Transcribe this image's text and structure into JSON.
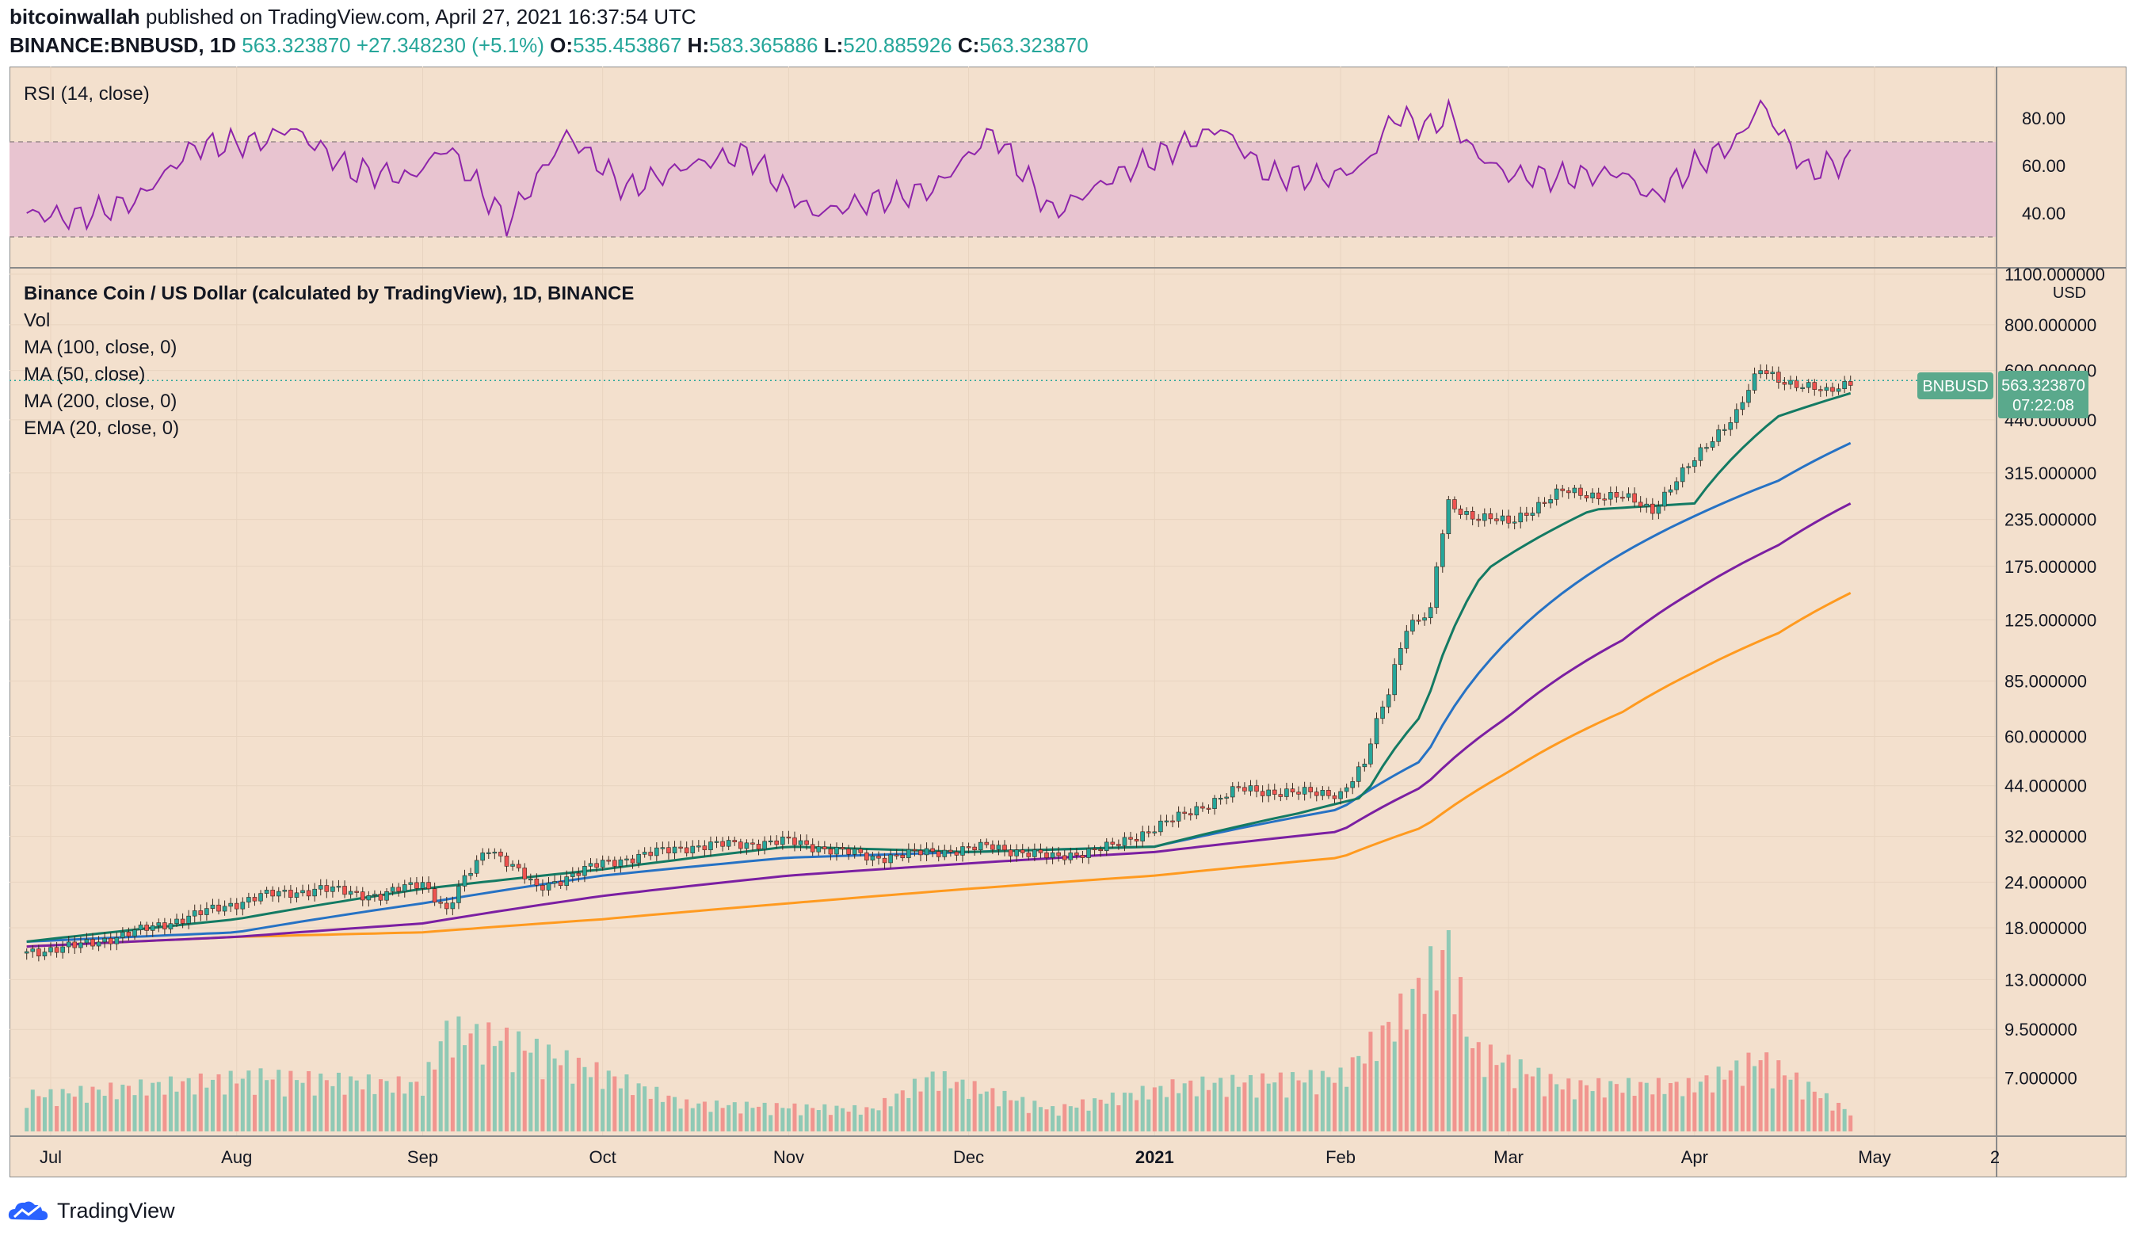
{
  "header": {
    "author": "bitcoinwallah",
    "published_text": "published on TradingView.com, April 27, 2021 16:37:54 UTC",
    "symbol": "BINANCE:BNBUSD, 1D",
    "last": "563.323870",
    "change": "+27.348230 (+5.1%)",
    "open_label": "O:",
    "open": "535.453867",
    "high_label": "H:",
    "high": "583.365886",
    "low_label": "L:",
    "low": "520.885926",
    "close_label": "C:",
    "close": "563.323870"
  },
  "rsi_pane": {
    "title": "RSI (14, close)",
    "ticks": [
      "80.00",
      "60.00",
      "40.00"
    ]
  },
  "price_pane": {
    "legend": [
      "Binance Coin / US Dollar (calculated by TradingView), 1D, BINANCE",
      "Vol",
      "MA (100, close, 0)",
      "MA (50, close)",
      "MA (200, close, 0)",
      "EMA (20, close, 0)"
    ],
    "currency": "USD",
    "ticks": [
      "1100.000000",
      "800.000000",
      "600.000000",
      "440.000000",
      "315.000000",
      "235.000000",
      "175.000000",
      "125.000000",
      "85.000000",
      "60.000000",
      "44.000000",
      "32.000000",
      "24.000000",
      "18.000000",
      "13.000000",
      "9.500000",
      "7.000000"
    ],
    "symbol_tag": "BNBUSD",
    "price_tag": "563.323870",
    "countdown": "07:22:08"
  },
  "x_axis": {
    "labels": [
      "Jul",
      "Aug",
      "Sep",
      "Oct",
      "Nov",
      "Dec",
      "2021",
      "Feb",
      "Mar",
      "Apr",
      "May",
      "2"
    ]
  },
  "footer": {
    "brand": "TradingView"
  },
  "colors": {
    "background": "#f3e0cd",
    "up": "#26a69a",
    "down": "#ef5350",
    "ema20": "#137a63",
    "ma50": "#2672c4",
    "ma100": "#7b1fa2",
    "ma200": "#ff9a1f",
    "rsi_line": "#8e24aa",
    "rsi_band": "#e8c4d0"
  },
  "chart_data": [
    {
      "type": "line",
      "name": "RSI (14, close)",
      "ylim": [
        25,
        95
      ],
      "bands": [
        30,
        70
      ],
      "x": [
        "2020-06-27",
        "2020-07-05",
        "2020-07-15",
        "2020-07-25",
        "2020-08-05",
        "2020-08-10",
        "2020-08-20",
        "2020-08-30",
        "2020-09-05",
        "2020-09-15",
        "2020-09-25",
        "2020-10-05",
        "2020-10-15",
        "2020-10-25",
        "2020-11-05",
        "2020-11-15",
        "2020-11-25",
        "2020-12-05",
        "2020-12-15",
        "2020-12-25",
        "2021-01-05",
        "2021-01-12",
        "2021-01-20",
        "2021-01-30",
        "2021-02-05",
        "2021-02-10",
        "2021-02-16",
        "2021-02-19",
        "2021-02-23",
        "2021-03-01",
        "2021-03-10",
        "2021-03-20",
        "2021-03-25",
        "2021-04-01",
        "2021-04-08",
        "2021-04-12",
        "2021-04-15",
        "2021-04-20",
        "2021-04-23",
        "2021-04-27"
      ],
      "values": [
        40,
        38,
        45,
        68,
        70,
        76,
        58,
        55,
        68,
        36,
        73,
        50,
        60,
        65,
        40,
        45,
        50,
        74,
        40,
        55,
        68,
        76,
        56,
        55,
        60,
        81,
        76,
        82,
        66,
        56,
        55,
        57,
        46,
        60,
        70,
        86,
        75,
        57,
        60,
        62
      ]
    },
    {
      "type": "candlestick",
      "name": "Binance Coin / US Dollar (calculated by TradingView), 1D, BINANCE",
      "yscale": "log",
      "ylim": [
        5,
        1100
      ],
      "x": [
        "2020-06-27",
        "2020-07-05",
        "2020-07-15",
        "2020-07-25",
        "2020-08-05",
        "2020-08-15",
        "2020-08-25",
        "2020-09-01",
        "2020-09-05",
        "2020-09-12",
        "2020-09-20",
        "2020-10-01",
        "2020-10-15",
        "2020-11-01",
        "2020-11-15",
        "2020-11-25",
        "2020-12-05",
        "2020-12-15",
        "2020-12-25",
        "2021-01-05",
        "2021-01-15",
        "2021-01-25",
        "2021-02-01",
        "2021-02-05",
        "2021-02-09",
        "2021-02-12",
        "2021-02-16",
        "2021-02-19",
        "2021-02-23",
        "2021-03-01",
        "2021-03-10",
        "2021-03-20",
        "2021-03-25",
        "2021-04-01",
        "2021-04-08",
        "2021-04-12",
        "2021-04-15",
        "2021-04-20",
        "2021-04-23",
        "2021-04-27"
      ],
      "close": [
        15.5,
        16,
        17.5,
        19.5,
        22,
        23,
        22,
        24,
        20,
        30,
        23,
        27,
        30,
        31,
        28,
        29,
        30,
        28,
        30,
        36,
        43,
        42,
        42,
        50,
        80,
        120,
        130,
        260,
        240,
        230,
        280,
        270,
        250,
        340,
        460,
        600,
        570,
        540,
        520,
        563
      ]
    },
    {
      "type": "line",
      "name": "EMA (20, close, 0)",
      "x": [
        "2020-06-27",
        "2020-08-01",
        "2020-09-01",
        "2020-10-01",
        "2020-11-01",
        "2020-12-01",
        "2021-01-01",
        "2021-01-25",
        "2021-02-05",
        "2021-02-15",
        "2021-02-25",
        "2021-03-15",
        "2021-04-01",
        "2021-04-15",
        "2021-04-27"
      ],
      "values": [
        16.5,
        19,
        23,
        26,
        30,
        29,
        30,
        37,
        41,
        70,
        170,
        250,
        260,
        450,
        520
      ]
    },
    {
      "type": "line",
      "name": "MA (50, close)",
      "x": [
        "2020-06-27",
        "2020-08-01",
        "2020-09-01",
        "2020-10-01",
        "2020-11-01",
        "2020-12-01",
        "2021-01-01",
        "2021-02-01",
        "2021-02-15",
        "2021-03-01",
        "2021-03-20",
        "2021-04-01",
        "2021-04-15",
        "2021-04-27"
      ],
      "values": [
        16.5,
        17.5,
        21,
        25,
        28,
        29,
        30,
        38,
        52,
        110,
        190,
        240,
        300,
        380
      ]
    },
    {
      "type": "line",
      "name": "MA (100, close, 0)",
      "x": [
        "2020-06-27",
        "2020-08-01",
        "2020-09-01",
        "2020-10-01",
        "2020-11-01",
        "2020-12-01",
        "2021-01-01",
        "2021-02-01",
        "2021-02-15",
        "2021-03-01",
        "2021-03-20",
        "2021-04-01",
        "2021-04-15",
        "2021-04-27"
      ],
      "values": [
        16,
        17,
        18.5,
        22,
        25,
        27,
        29,
        33,
        44,
        68,
        110,
        150,
        200,
        260
      ]
    },
    {
      "type": "line",
      "name": "MA (200, close, 0)",
      "x": [
        "2020-06-27",
        "2020-08-01",
        "2020-09-01",
        "2020-10-01",
        "2020-11-01",
        "2020-12-01",
        "2021-01-01",
        "2021-02-01",
        "2021-02-15",
        "2021-03-01",
        "2021-03-20",
        "2021-04-01",
        "2021-04-15",
        "2021-04-27"
      ],
      "values": [
        16,
        17,
        17.5,
        19,
        21,
        23,
        25,
        28,
        34,
        48,
        70,
        90,
        115,
        148
      ]
    },
    {
      "type": "bar",
      "name": "Vol",
      "x": [
        "2020-07-01",
        "2020-08-05",
        "2020-09-01",
        "2020-09-05",
        "2020-09-15",
        "2020-10-15",
        "2020-11-15",
        "2020-11-25",
        "2020-12-15",
        "2021-01-05",
        "2021-02-01",
        "2021-02-10",
        "2021-02-19",
        "2021-02-23",
        "2021-03-10",
        "2021-04-01",
        "2021-04-12",
        "2021-04-27"
      ],
      "values": [
        0.2,
        0.3,
        0.25,
        0.55,
        0.5,
        0.15,
        0.12,
        0.3,
        0.12,
        0.25,
        0.3,
        0.6,
        1.0,
        0.45,
        0.25,
        0.25,
        0.4,
        0.1
      ]
    }
  ]
}
